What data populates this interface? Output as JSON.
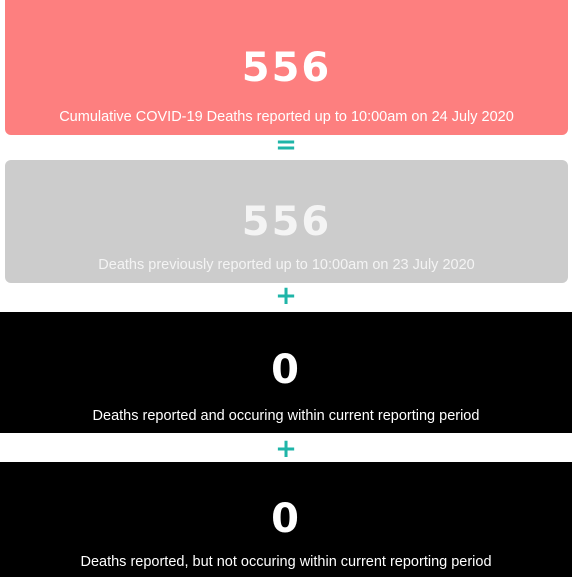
{
  "cards": [
    {
      "value": 556,
      "label": "Cumulative COVID-19 Deaths reported up to 10:00am on 24 July 2020"
    },
    {
      "value": 556,
      "label": "Deaths previously reported up to 10:00am on 23 July 2020"
    },
    {
      "value": 0,
      "label": "Deaths reported and occuring within current reporting period"
    },
    {
      "value": 0,
      "label": "Deaths reported, but not occuring within current reporting period"
    }
  ],
  "operators": [
    "=",
    "+",
    "+"
  ]
}
